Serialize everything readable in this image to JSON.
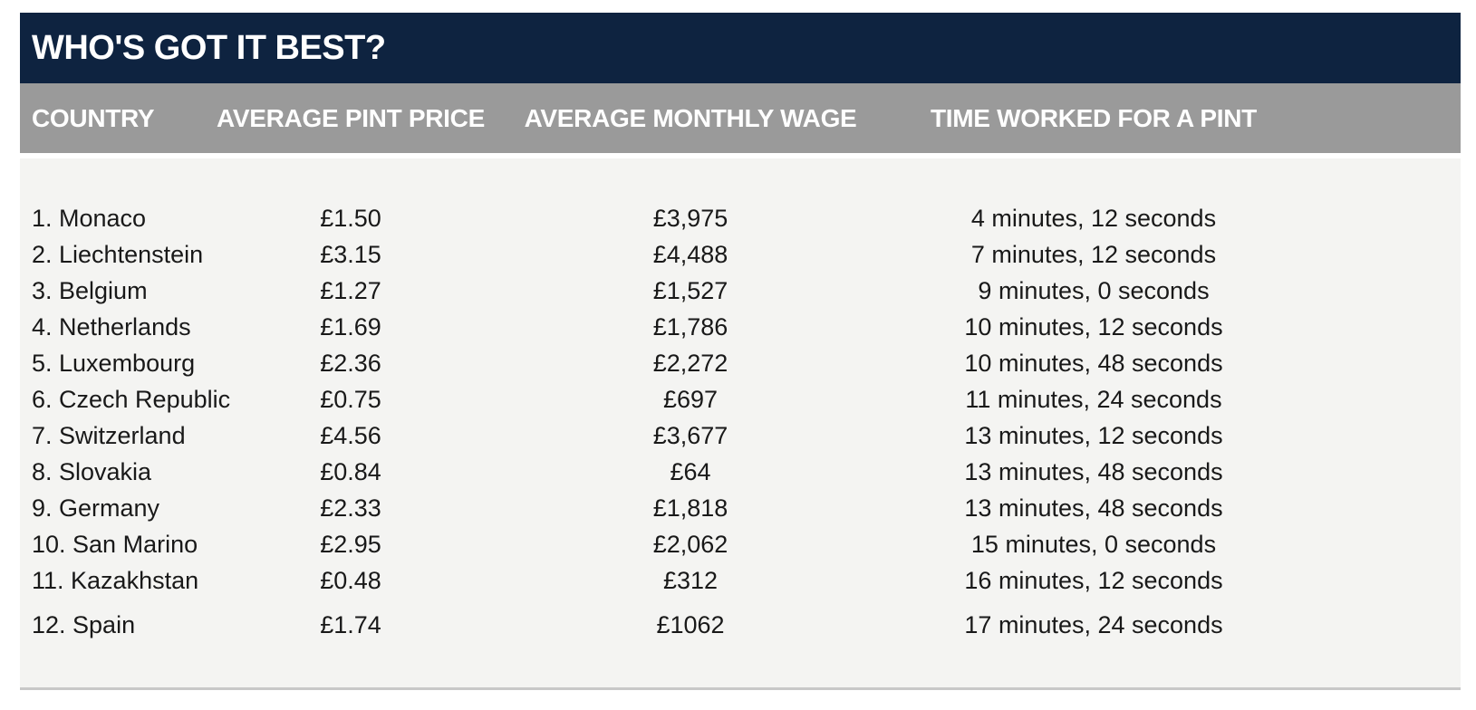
{
  "chart_data": {
    "type": "table",
    "title": "WHO'S GOT IT BEST?",
    "columns": [
      "COUNTRY",
      "AVERAGE PINT PRICE",
      "AVERAGE MONTHLY WAGE",
      "TIME WORKED FOR A PINT"
    ],
    "rows": [
      {
        "country": "1. Monaco",
        "pint_price": "£1.50",
        "monthly_wage": "£3,975",
        "time_worked": "4 minutes, 12 seconds"
      },
      {
        "country": "2. Liechtenstein",
        "pint_price": "£3.15",
        "monthly_wage": "£4,488",
        "time_worked": "7 minutes, 12 seconds"
      },
      {
        "country": "3. Belgium",
        "pint_price": "£1.27",
        "monthly_wage": "£1,527",
        "time_worked": "9 minutes, 0 seconds"
      },
      {
        "country": "4. Netherlands",
        "pint_price": "£1.69",
        "monthly_wage": "£1,786",
        "time_worked": "10 minutes, 12 seconds"
      },
      {
        "country": "5. Luxembourg",
        "pint_price": "£2.36",
        "monthly_wage": "£2,272",
        "time_worked": "10 minutes, 48 seconds"
      },
      {
        "country": "6. Czech Republic",
        "pint_price": "£0.75",
        "monthly_wage": "£697",
        "time_worked": "11 minutes, 24 seconds"
      },
      {
        "country": "7. Switzerland",
        "pint_price": "£4.56",
        "monthly_wage": "£3,677",
        "time_worked": "13 minutes, 12 seconds"
      },
      {
        "country": "8. Slovakia",
        "pint_price": "£0.84",
        "monthly_wage": "£64",
        "time_worked": "13 minutes, 48 seconds"
      },
      {
        "country": "9. Germany",
        "pint_price": "£2.33",
        "monthly_wage": "£1,818",
        "time_worked": "13 minutes, 48 seconds"
      },
      {
        "country": "10. San Marino",
        "pint_price": "£2.95",
        "monthly_wage": "£2,062",
        "time_worked": "15 minutes, 0 seconds"
      },
      {
        "country": "11. Kazakhstan",
        "pint_price": "£0.48",
        "monthly_wage": "£312",
        "time_worked": "16 minutes, 12 seconds"
      },
      {
        "country": "12. Spain",
        "pint_price": "£1.74",
        "monthly_wage": "£1062",
        "time_worked": "17 minutes, 24 seconds"
      }
    ]
  },
  "colors": {
    "title_bar_bg": "#0e2340",
    "header_bg": "#9a9a9a",
    "body_bg": "#f4f4f2",
    "header_text": "#ffffff",
    "body_text": "#191919",
    "bottom_border": "#c8c8c8"
  }
}
